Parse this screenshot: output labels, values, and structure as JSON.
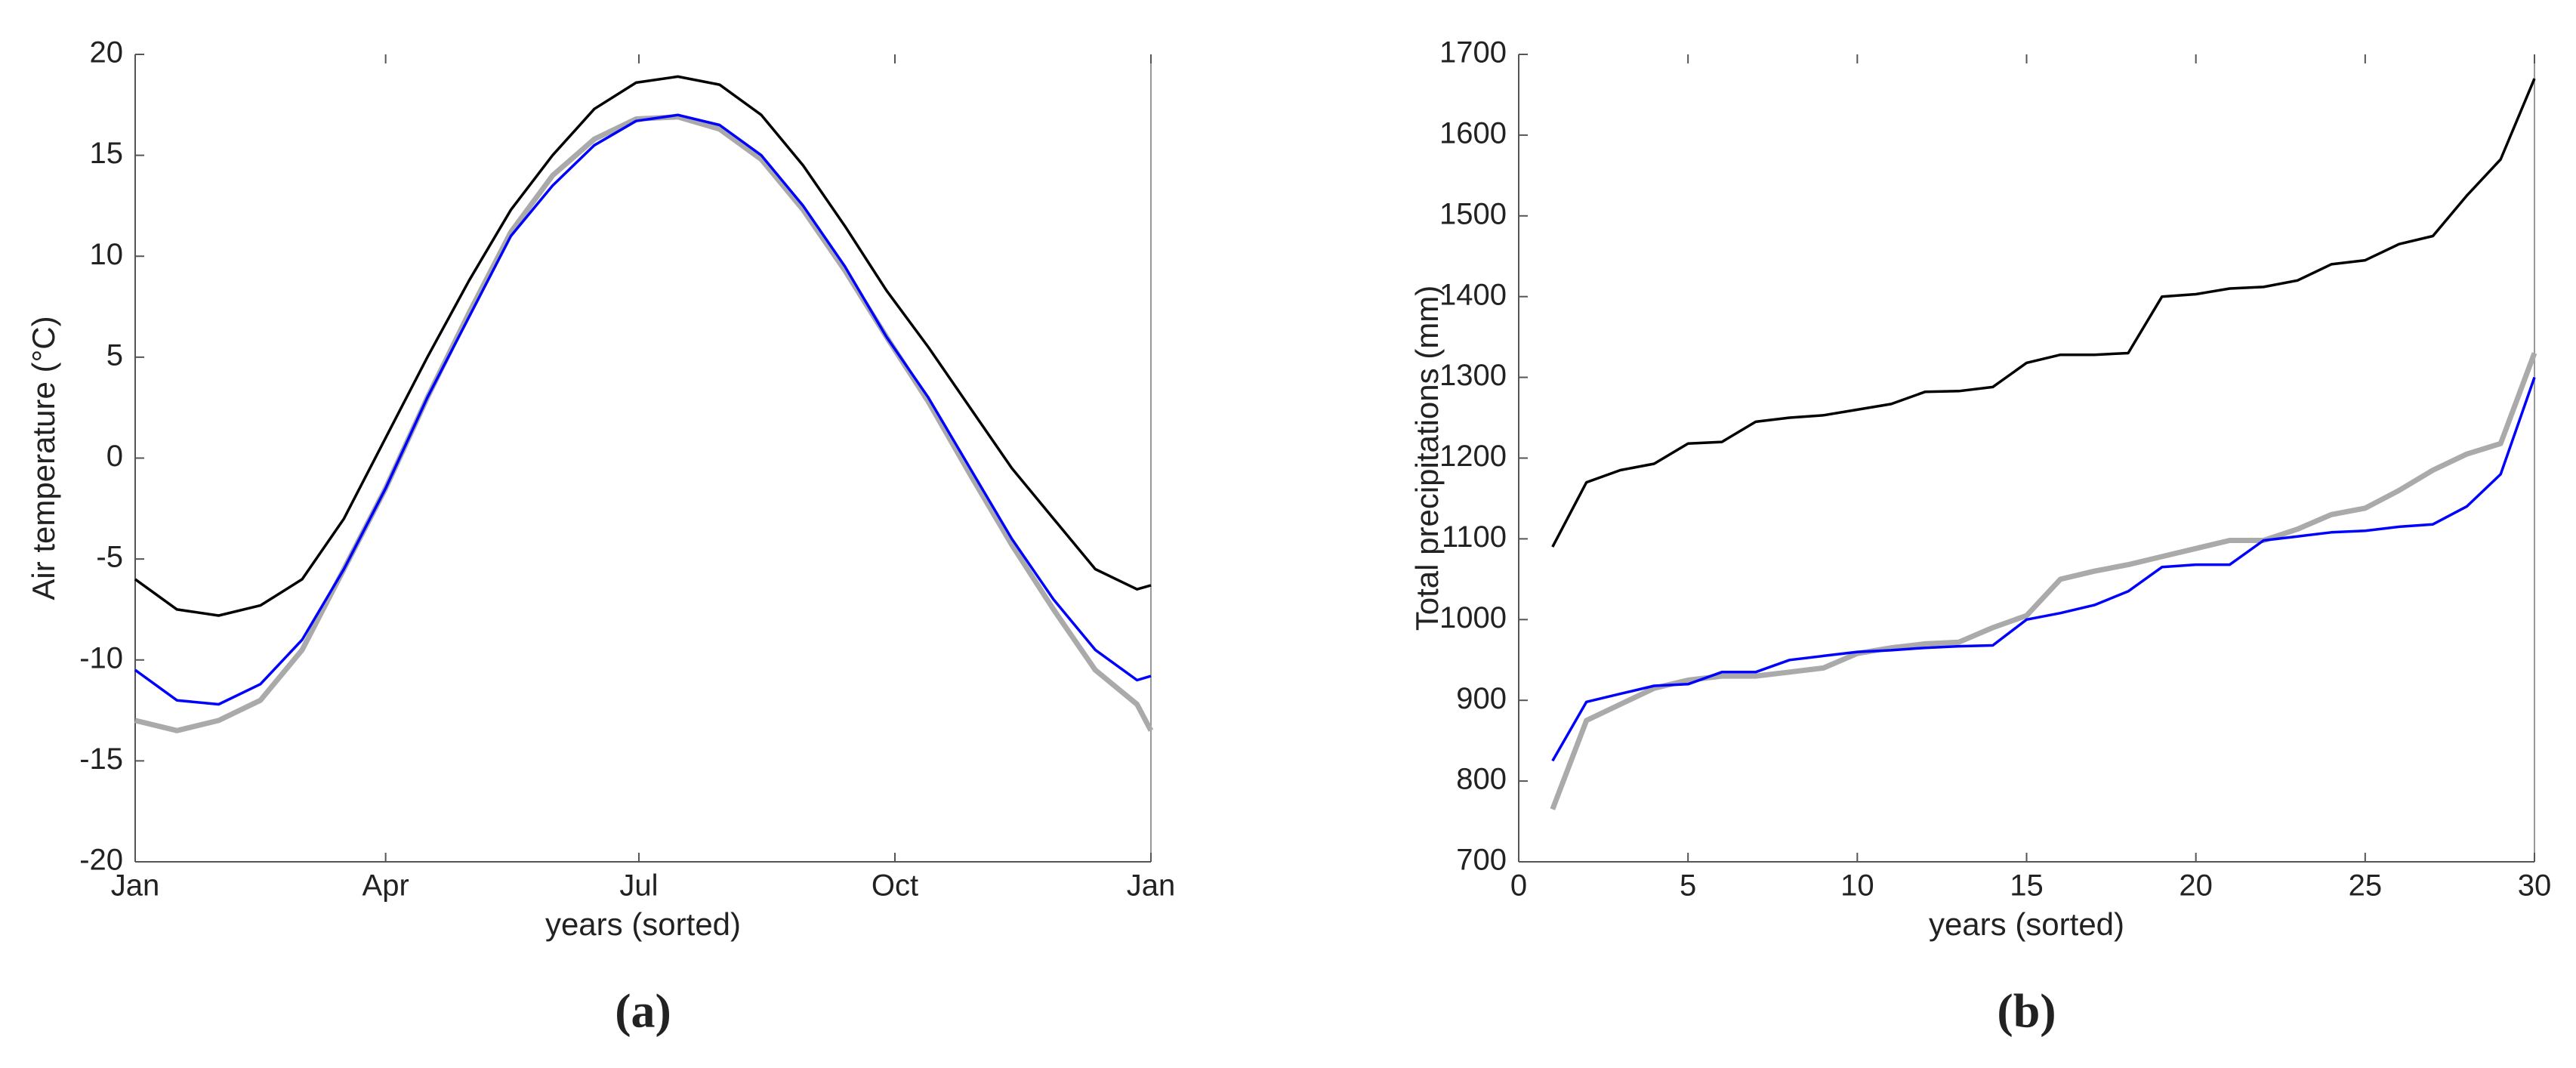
{
  "chart_data": [
    {
      "type": "line",
      "caption": "(a)",
      "x_label": "years (sorted)",
      "y_label": "Air temperature (°C)",
      "x": [
        0,
        15,
        30,
        45,
        60,
        75,
        90,
        105,
        120,
        135,
        150,
        165,
        180,
        195,
        210,
        225,
        240,
        255,
        270,
        285,
        300,
        315,
        330,
        345,
        360,
        365
      ],
      "series": [
        {
          "color": "#000000",
          "values": [
            -6,
            -7.5,
            -7.8,
            -7.3,
            -6,
            -3,
            1,
            5,
            8.8,
            12.3,
            15,
            17.3,
            18.6,
            18.9,
            18.5,
            17,
            14.5,
            11.5,
            8.3,
            5.5,
            2.5,
            -0.5,
            -3,
            -5.5,
            -6.5,
            -6.3
          ]
        },
        {
          "color": "#aaaaaa",
          "values": [
            -13,
            -13.5,
            -13,
            -12,
            -9.5,
            -5.5,
            -1.5,
            3,
            7.2,
            11.2,
            14,
            15.8,
            16.8,
            16.9,
            16.3,
            14.8,
            12.3,
            9.3,
            6,
            2.8,
            -0.8,
            -4.3,
            -7.5,
            -10.5,
            -12.2,
            -13.5
          ]
        },
        {
          "color": "#0000ff",
          "values": [
            -10.5,
            -12,
            -12.2,
            -11.2,
            -9,
            -5.5,
            -1.5,
            3,
            7,
            11,
            13.5,
            15.5,
            16.7,
            17,
            16.5,
            15,
            12.5,
            9.5,
            6,
            3,
            -0.5,
            -4,
            -7,
            -9.5,
            -11,
            -10.8
          ]
        }
      ],
      "xlim": [
        0,
        365
      ],
      "xticks": [
        {
          "value": 0,
          "label": "Jan"
        },
        {
          "value": 90,
          "label": "Apr"
        },
        {
          "value": 181,
          "label": "Jul"
        },
        {
          "value": 273,
          "label": "Oct"
        },
        {
          "value": 365,
          "label": "Jan"
        }
      ],
      "ylim": [
        -20,
        20
      ],
      "yticks": [
        -20,
        -15,
        -10,
        -5,
        0,
        5,
        10,
        15,
        20
      ]
    },
    {
      "type": "line",
      "caption": "(b)",
      "x_label": "years (sorted)",
      "y_label": "Total precipitations (mm)",
      "x": [
        1,
        2,
        3,
        4,
        5,
        6,
        7,
        8,
        9,
        10,
        11,
        12,
        13,
        14,
        15,
        16,
        17,
        18,
        19,
        20,
        21,
        22,
        23,
        24,
        25,
        26,
        27,
        28,
        29,
        30
      ],
      "series": [
        {
          "color": "#000000",
          "values": [
            1090,
            1170,
            1185,
            1193,
            1218,
            1220,
            1245,
            1250,
            1253,
            1260,
            1267,
            1282,
            1283,
            1288,
            1318,
            1328,
            1328,
            1330,
            1400,
            1403,
            1410,
            1412,
            1420,
            1440,
            1445,
            1465,
            1475,
            1525,
            1570,
            1670
          ]
        },
        {
          "color": "#aaaaaa",
          "values": [
            765,
            875,
            895,
            915,
            925,
            930,
            930,
            935,
            940,
            958,
            965,
            970,
            972,
            990,
            1005,
            1050,
            1060,
            1068,
            1078,
            1088,
            1098,
            1098,
            1112,
            1130,
            1138,
            1160,
            1185,
            1205,
            1218,
            1330
          ]
        },
        {
          "color": "#0000ff",
          "values": [
            825,
            898,
            908,
            918,
            920,
            935,
            935,
            950,
            955,
            960,
            962,
            965,
            967,
            968,
            1000,
            1008,
            1018,
            1035,
            1065,
            1068,
            1068,
            1098,
            1103,
            1108,
            1110,
            1115,
            1118,
            1140,
            1180,
            1300
          ]
        }
      ],
      "xlim": [
        0,
        30
      ],
      "xticks": [
        0,
        5,
        10,
        15,
        20,
        25,
        30
      ],
      "ylim": [
        700,
        1700
      ],
      "yticks": [
        700,
        800,
        900,
        1000,
        1100,
        1200,
        1300,
        1400,
        1500,
        1600,
        1700
      ]
    }
  ]
}
